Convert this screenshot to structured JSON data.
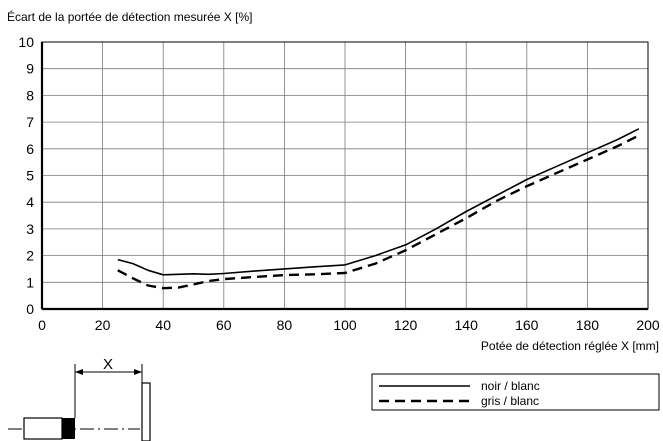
{
  "chart_data": {
    "type": "line",
    "ylabel": "Écart de la portée de détection mesurée X [%]",
    "xlabel": "Potée de détection réglée X [mm]",
    "xlim": [
      0,
      200
    ],
    "ylim": [
      0,
      10
    ],
    "xticks": [
      0,
      20,
      40,
      60,
      80,
      100,
      120,
      140,
      160,
      180,
      200
    ],
    "yticks": [
      0,
      1,
      2,
      3,
      4,
      5,
      6,
      7,
      8,
      9,
      10
    ],
    "grid": true,
    "series": [
      {
        "name": "noir / blanc",
        "style": "solid",
        "points": [
          [
            25,
            1.85
          ],
          [
            30,
            1.7
          ],
          [
            35,
            1.45
          ],
          [
            40,
            1.28
          ],
          [
            45,
            1.3
          ],
          [
            50,
            1.32
          ],
          [
            55,
            1.3
          ],
          [
            60,
            1.33
          ],
          [
            70,
            1.42
          ],
          [
            80,
            1.5
          ],
          [
            90,
            1.58
          ],
          [
            100,
            1.65
          ],
          [
            110,
            2.0
          ],
          [
            120,
            2.4
          ],
          [
            130,
            3.0
          ],
          [
            140,
            3.65
          ],
          [
            150,
            4.25
          ],
          [
            160,
            4.85
          ],
          [
            170,
            5.35
          ],
          [
            180,
            5.85
          ],
          [
            190,
            6.35
          ],
          [
            197,
            6.75
          ]
        ]
      },
      {
        "name": "gris / blanc",
        "style": "dashed",
        "points": [
          [
            25,
            1.45
          ],
          [
            30,
            1.15
          ],
          [
            35,
            0.88
          ],
          [
            40,
            0.78
          ],
          [
            45,
            0.8
          ],
          [
            50,
            0.92
          ],
          [
            55,
            1.05
          ],
          [
            60,
            1.12
          ],
          [
            70,
            1.2
          ],
          [
            80,
            1.27
          ],
          [
            90,
            1.3
          ],
          [
            100,
            1.35
          ],
          [
            110,
            1.7
          ],
          [
            120,
            2.2
          ],
          [
            130,
            2.8
          ],
          [
            140,
            3.4
          ],
          [
            150,
            4.05
          ],
          [
            160,
            4.6
          ],
          [
            170,
            5.1
          ],
          [
            180,
            5.6
          ],
          [
            190,
            6.1
          ],
          [
            197,
            6.5
          ]
        ]
      }
    ]
  },
  "diagram": {
    "distance_label": "X"
  }
}
